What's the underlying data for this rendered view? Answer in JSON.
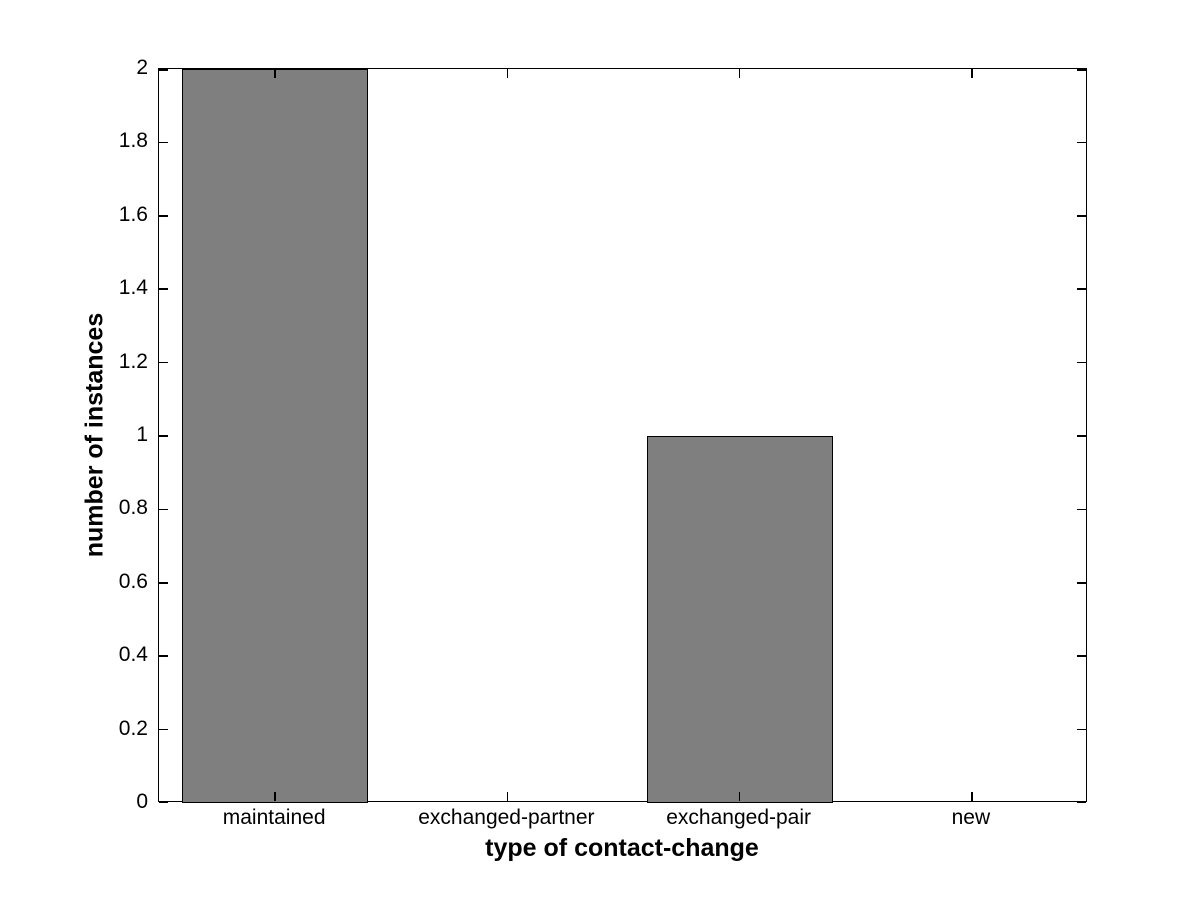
{
  "figure": {
    "background_color": "#ffffff"
  },
  "chart_data": {
    "type": "bar",
    "title": "",
    "xlabel": "type of contact-change",
    "ylabel": "number of instances",
    "categories": [
      "maintained",
      "exchanged-partner",
      "exchanged-pair",
      "new"
    ],
    "values": [
      2,
      0,
      1,
      0
    ],
    "ylim": [
      0,
      2
    ],
    "y_tick_values": [
      0,
      0.2,
      0.4,
      0.6,
      0.8,
      1,
      1.2,
      1.4,
      1.6,
      1.8,
      2
    ],
    "y_tick_labels": [
      "0",
      "0.2",
      "0.4",
      "0.6",
      "0.8",
      "1",
      "1.2",
      "1.4",
      "1.6",
      "1.8",
      "2"
    ],
    "bar_color": "#7f7f7f",
    "bar_edge_color": "#000000",
    "axis_color": "#000000",
    "bar_width_fraction": 0.8,
    "grid": false,
    "legend": null,
    "tick_direction": "in",
    "box": true
  }
}
